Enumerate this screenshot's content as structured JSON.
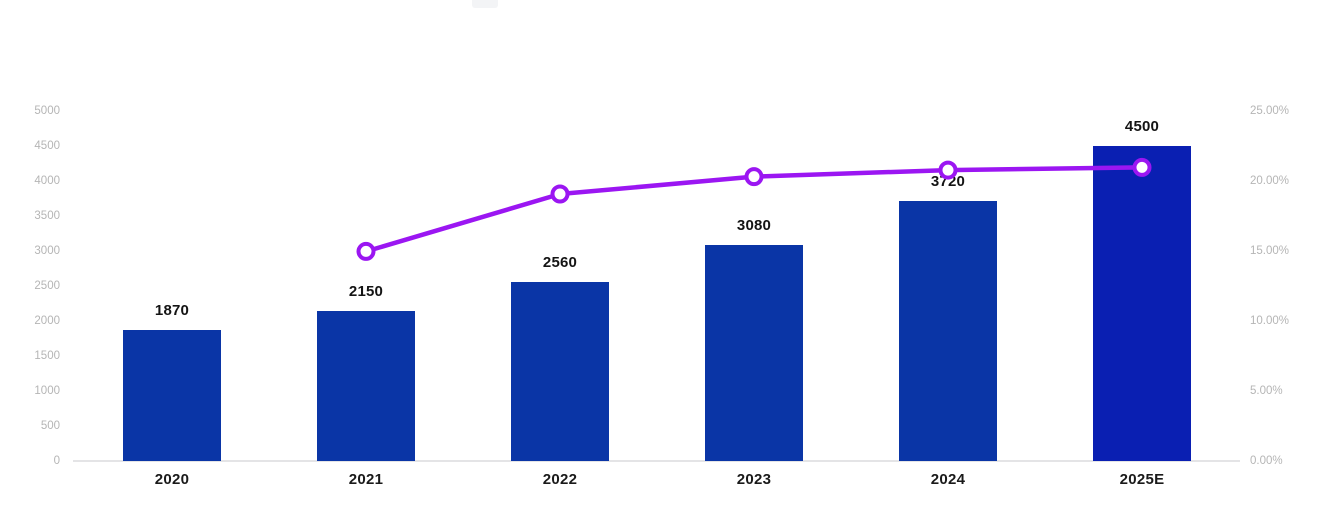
{
  "chart_data": {
    "type": "bar-line-combo",
    "title": "",
    "categories": [
      "2020",
      "2021",
      "2022",
      "2023",
      "2024",
      "2025E"
    ],
    "series": [
      {
        "name": "annual-value-bars",
        "type": "bar",
        "values": [
          1870,
          2150,
          2560,
          3080,
          3720,
          4500
        ],
        "data_labels": [
          "1870",
          "2150",
          "2560",
          "3080",
          "3720",
          "4500"
        ],
        "bar_color": "#0a35a6",
        "last_bar_color": "#0a1fb2",
        "axis": "left"
      },
      {
        "name": "growth-rate-line",
        "type": "line",
        "values": [
          null,
          14.97,
          19.07,
          20.31,
          20.78,
          20.97
        ],
        "line_color": "#9b16f2",
        "marker": "circle-white-fill",
        "axis": "right"
      }
    ],
    "left_axis": {
      "min": 0,
      "max": 5000,
      "tick_labels": [
        "5000",
        "4500",
        "4000",
        "3500",
        "3000",
        "2500",
        "2000",
        "1500",
        "1000",
        "500",
        "0"
      ],
      "label_color": "#b5b5b5"
    },
    "right_axis": {
      "min": 0,
      "max": 25,
      "tick_labels": [
        "25.00%",
        "20.00%",
        "15.00%",
        "10.00%",
        "5.00%",
        "0.00%"
      ],
      "label_color": "#b5b5b5"
    },
    "x_axis": {
      "labels": [
        "2020",
        "2021",
        "2022",
        "2023",
        "2024",
        "2025E"
      ],
      "label_color": "#1a1a1a",
      "baseline_color": "#e4e4e6"
    },
    "grid": "off",
    "legend": "none",
    "value_label_color": "#141414"
  }
}
